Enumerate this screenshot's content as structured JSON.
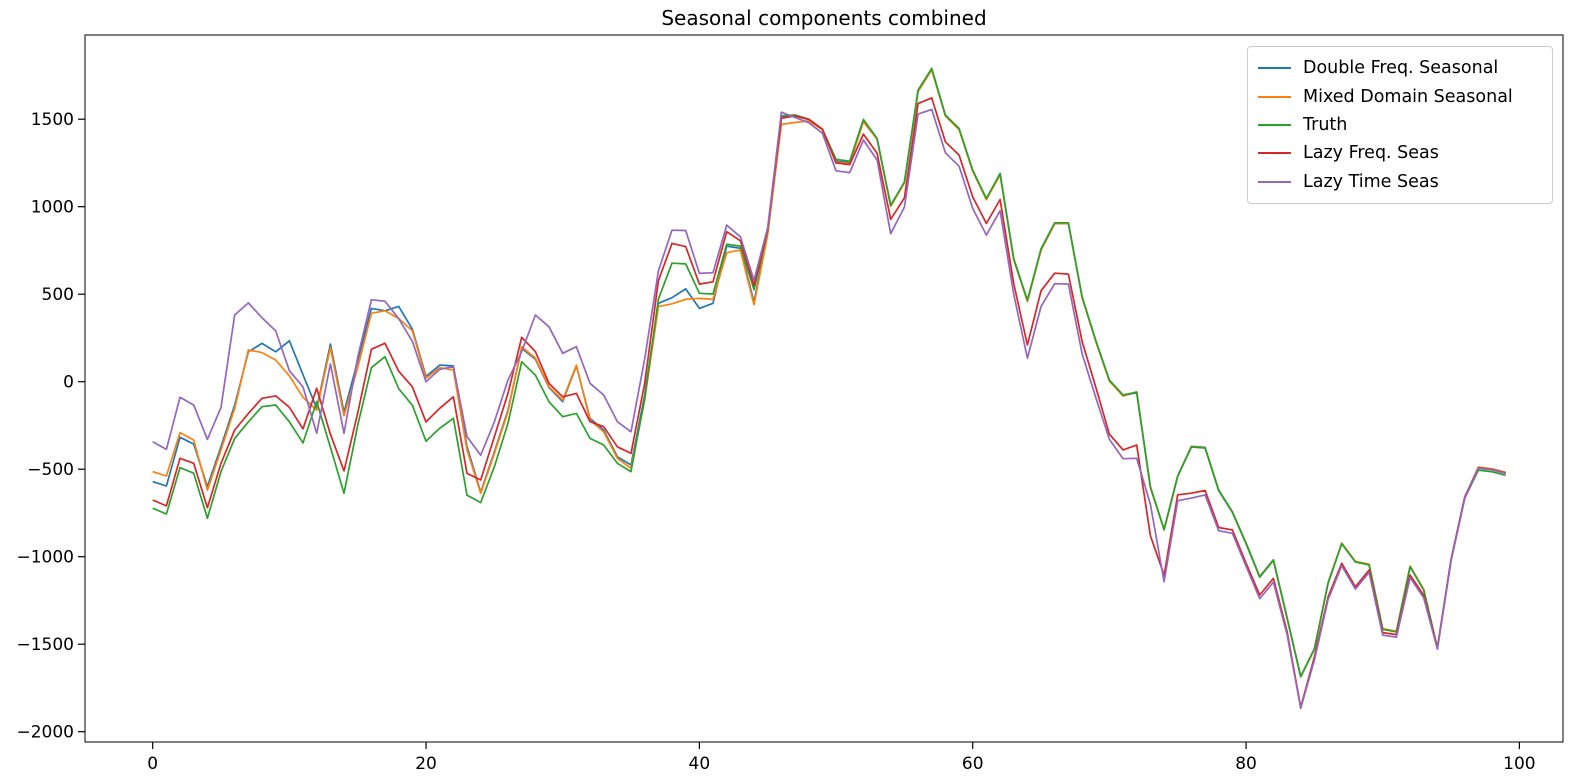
{
  "title": "Seasonal components combined",
  "chart_data": {
    "type": "line",
    "title": "Seasonal components combined",
    "xlabel": "",
    "ylabel": "",
    "x_description": "x values are the integer indices 0..99",
    "x_ticks": [
      0,
      20,
      40,
      60,
      80,
      100
    ],
    "y_ticks": [
      -2000,
      -1500,
      -1000,
      -500,
      0,
      500,
      1000,
      1500
    ],
    "xlim": [
      -5,
      103.2
    ],
    "ylim": [
      -2060,
      1980
    ],
    "grid": false,
    "legend_position": "upper right",
    "series": [
      {
        "name": "Double Freq. Seasonal",
        "color": "#1f77b4",
        "values": [
          -571,
          -596,
          -318,
          -356,
          -600,
          -371,
          -133,
          171,
          219,
          171,
          234,
          40,
          -152,
          215,
          -175,
          120,
          419,
          405,
          430,
          300,
          30,
          95,
          90,
          -371,
          -632,
          -400,
          -162,
          191,
          128,
          -33,
          -114,
          90,
          -210,
          -276,
          -429,
          -476,
          -76,
          448,
          480,
          530,
          419,
          448,
          775,
          762,
          455,
          860,
          1510,
          1519,
          1498,
          1443,
          1260,
          1250,
          1490,
          1388,
          1005,
          1138,
          1660,
          1785,
          1520,
          1443,
          1205,
          1043,
          1186,
          700,
          462,
          755,
          904,
          904,
          482,
          234,
          5,
          -80,
          -62,
          -604,
          -843,
          -537,
          -369,
          -375,
          -619,
          -743,
          -922,
          -1113,
          -1017,
          -1348,
          -1684,
          -1526,
          -1150,
          -924,
          -1028,
          -1045,
          -1413,
          -1428,
          -1056,
          -1188,
          -1521,
          -1018,
          -664,
          -490,
          -500,
          -520
        ]
      },
      {
        "name": "Mixed Domain Seasonal",
        "color": "#ff7f0e",
        "values": [
          -514,
          -539,
          -291,
          -333,
          -620,
          -390,
          -152,
          181,
          166,
          124,
          33,
          -90,
          -162,
          196,
          -195,
          80,
          391,
          405,
          361,
          290,
          20,
          80,
          67,
          -390,
          -638,
          -409,
          -171,
          200,
          134,
          -29,
          -105,
          95,
          -219,
          -286,
          -438,
          -495,
          -104,
          429,
          445,
          471,
          476,
          470,
          737,
          752,
          440,
          840,
          1470,
          1481,
          1490,
          1440,
          1255,
          1245,
          1485,
          1385,
          1002,
          1135,
          1658,
          1782,
          1518,
          1440,
          1203,
          1040,
          1183,
          698,
          458,
          752,
          902,
          905,
          480,
          232,
          3,
          -82,
          -58,
          -606,
          -845,
          -539,
          -371,
          -377,
          -621,
          -745,
          -924,
          -1115,
          -1019,
          -1350,
          -1685,
          -1528,
          -1148,
          -922,
          -1026,
          -1043,
          -1411,
          -1426,
          -1054,
          -1186,
          -1519,
          -1016,
          -662,
          -488,
          -498,
          -518
        ]
      },
      {
        "name": "Truth",
        "color": "#2ca02c",
        "values": [
          -723,
          -756,
          -491,
          -523,
          -780,
          -514,
          -324,
          -229,
          -143,
          -133,
          -229,
          -350,
          -114,
          -375,
          -638,
          -250,
          80,
          143,
          -40,
          -135,
          -340,
          -266,
          -209,
          -648,
          -691,
          -485,
          -238,
          114,
          38,
          -115,
          -200,
          -181,
          -324,
          -362,
          -466,
          -514,
          -95,
          472,
          677,
          673,
          505,
          501,
          786,
          775,
          525,
          867,
          1520,
          1524,
          1500,
          1443,
          1270,
          1260,
          1499,
          1390,
          1008,
          1141,
          1667,
          1790,
          1524,
          1447,
          1209,
          1047,
          1190,
          704,
          466,
          760,
          908,
          908,
          486,
          238,
          9,
          -76,
          -60,
          -600,
          -847,
          -541,
          -373,
          -379,
          -623,
          -747,
          -926,
          -1117,
          -1021,
          -1352,
          -1686,
          -1529,
          -1152,
          -926,
          -1030,
          -1047,
          -1415,
          -1430,
          -1058,
          -1190,
          -1523,
          -1020,
          -666,
          -505,
          -515,
          -535
        ]
      },
      {
        "name": "Lazy Freq. Seas",
        "color": "#d62728",
        "values": [
          -676,
          -710,
          -438,
          -466,
          -720,
          -467,
          -276,
          -181,
          -95,
          -81,
          -146,
          -270,
          -38,
          -300,
          -510,
          -180,
          185,
          220,
          60,
          -30,
          -230,
          -152,
          -86,
          -524,
          -562,
          -314,
          -66,
          254,
          172,
          -10,
          -86,
          -67,
          -228,
          -257,
          -372,
          -410,
          -9,
          577,
          790,
          772,
          558,
          571,
          857,
          805,
          550,
          870,
          1505,
          1519,
          1500,
          1443,
          1250,
          1240,
          1415,
          1305,
          928,
          1050,
          1590,
          1622,
          1371,
          1295,
          1056,
          904,
          1041,
          561,
          210,
          520,
          620,
          615,
          230,
          -30,
          -300,
          -390,
          -362,
          -880,
          -1105,
          -646,
          -637,
          -622,
          -833,
          -847,
          -1038,
          -1219,
          -1124,
          -1428,
          -1860,
          -1572,
          -1229,
          -1038,
          -1172,
          -1076,
          -1434,
          -1445,
          -1105,
          -1220,
          -1523,
          -1015,
          -660,
          -492,
          -502,
          -522
        ]
      },
      {
        "name": "Lazy Time Seas",
        "color": "#9467bd",
        "values": [
          -343,
          -387,
          -89,
          -133,
          -330,
          -147,
          381,
          450,
          365,
          290,
          63,
          -30,
          -295,
          101,
          -295,
          140,
          468,
          460,
          360,
          230,
          0,
          70,
          86,
          -314,
          -420,
          -229,
          10,
          172,
          381,
          314,
          162,
          200,
          -9,
          -76,
          -229,
          -286,
          130,
          634,
          866,
          864,
          619,
          623,
          895,
          828,
          580,
          880,
          1540,
          1510,
          1480,
          1420,
          1205,
          1195,
          1381,
          1267,
          846,
          998,
          1529,
          1556,
          1308,
          1231,
          990,
          838,
          977,
          500,
          135,
          430,
          560,
          558,
          160,
          -90,
          -330,
          -440,
          -438,
          -700,
          -1143,
          -680,
          -665,
          -647,
          -852,
          -866,
          -1055,
          -1240,
          -1145,
          -1445,
          -1867,
          -1590,
          -1245,
          -1052,
          -1185,
          -1090,
          -1448,
          -1460,
          -1120,
          -1235,
          -1528,
          -1022,
          -668,
          -494,
          -504,
          -524
        ]
      }
    ]
  }
}
